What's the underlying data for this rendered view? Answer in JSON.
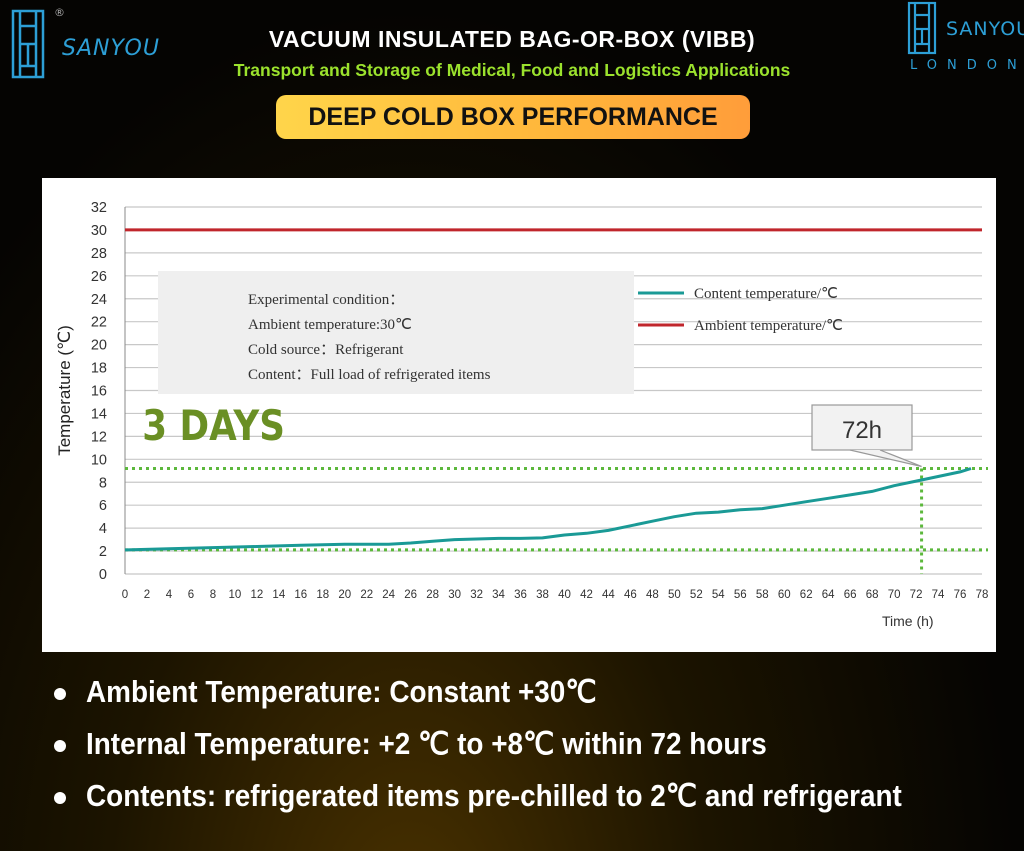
{
  "brand": {
    "left_name": "SANYOU",
    "left_reg": "®",
    "right_name": "SANYOU",
    "right_sub": "LONDON",
    "color": "#2d9fd6"
  },
  "header": {
    "title": "VACUUM INSULATED BAG-OR-BOX (VIBB)",
    "subtitle": "Transport and Storage of Medical, Food and Logistics Applications",
    "badge": "DEEP COLD BOX PERFORMANCE"
  },
  "chart_data": {
    "type": "line",
    "xlabel": "Time (h)",
    "ylabel": "Temperature (℃)",
    "xlim": [
      0,
      78
    ],
    "ylim": [
      0,
      32
    ],
    "xticks": [
      0,
      2,
      4,
      6,
      8,
      10,
      12,
      14,
      16,
      18,
      20,
      22,
      24,
      26,
      28,
      30,
      32,
      34,
      36,
      38,
      40,
      42,
      44,
      46,
      48,
      50,
      52,
      54,
      56,
      58,
      60,
      62,
      64,
      66,
      68,
      70,
      72,
      74,
      76,
      78
    ],
    "yticks": [
      0,
      2,
      4,
      6,
      8,
      10,
      12,
      14,
      16,
      18,
      20,
      22,
      24,
      26,
      28,
      30,
      32
    ],
    "grid": true,
    "legend_position": "top-right",
    "series": [
      {
        "name": "Content temperature/℃",
        "color": "#1a9a96",
        "x": [
          0,
          4,
          8,
          12,
          16,
          20,
          24,
          26,
          28,
          30,
          32,
          34,
          36,
          38,
          40,
          42,
          44,
          46,
          48,
          50,
          52,
          54,
          56,
          58,
          60,
          62,
          64,
          66,
          68,
          70,
          72,
          74,
          76,
          77
        ],
        "y": [
          2.1,
          2.2,
          2.3,
          2.4,
          2.5,
          2.6,
          2.6,
          2.7,
          2.85,
          3.0,
          3.05,
          3.1,
          3.1,
          3.15,
          3.4,
          3.55,
          3.8,
          4.2,
          4.6,
          5.0,
          5.3,
          5.4,
          5.6,
          5.7,
          6.0,
          6.3,
          6.6,
          6.9,
          7.2,
          7.7,
          8.1,
          8.5,
          8.9,
          9.2
        ]
      },
      {
        "name": "Ambient temperature/℃",
        "color": "#c0262c",
        "x": [
          0,
          78
        ],
        "y": [
          30,
          30
        ]
      }
    ],
    "reference_lines": {
      "h_values": [
        9.2,
        2.1
      ],
      "v_value": 72.5,
      "color": "#5cb83c"
    },
    "annotations": {
      "box_lines": [
        "Experimental condition：",
        "Ambient temperature:30℃",
        "Cold source：Refrigerant",
        "Content：Full load of refrigerated  items"
      ],
      "days_label": "3 DAYS",
      "days_color": "#6a8f24",
      "callout": "72h"
    }
  },
  "bullets": [
    "Ambient Temperature: Constant +30℃",
    "Internal Temperature: +2 ℃ to +8℃ within  72 hours",
    "Contents: refrigerated items pre-chilled to 2℃ and refrigerant"
  ]
}
